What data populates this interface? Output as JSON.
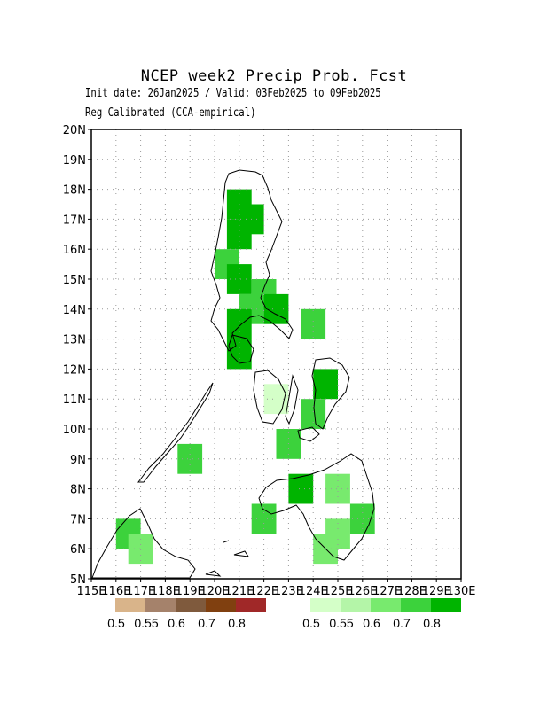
{
  "title": "NCEP week2 Precip Prob. Fcst",
  "subtitle_line1": "Init date: 26Jan2025 / Valid: 03Feb2025 to 09Feb2025",
  "subtitle_line2": "Reg Calibrated (CCA-empirical)",
  "map": {
    "lon_range": [
      115,
      130
    ],
    "lat_range": [
      5,
      20
    ],
    "grid": true,
    "lon_labels": [
      "115E",
      "116E",
      "117E",
      "118E",
      "119E",
      "120E",
      "121E",
      "122E",
      "123E",
      "124E",
      "125E",
      "126E",
      "127E",
      "128E",
      "129E",
      "130E"
    ],
    "lat_labels": [
      "5N",
      "6N",
      "7N",
      "8N",
      "9N",
      "10N",
      "11N",
      "12N",
      "13N",
      "14N",
      "15N",
      "16N",
      "17N",
      "18N",
      "19N",
      "20N"
    ],
    "cell_size_deg": 1,
    "cells": [
      {
        "lon": 120.5,
        "lat": 15.5,
        "p": 0.7
      },
      {
        "lon": 121.0,
        "lat": 17.5,
        "p": 0.8
      },
      {
        "lon": 121.0,
        "lat": 16.5,
        "p": 0.8
      },
      {
        "lon": 121.5,
        "lat": 17.0,
        "p": 0.8
      },
      {
        "lon": 121.0,
        "lat": 15.0,
        "p": 0.8
      },
      {
        "lon": 121.5,
        "lat": 14.0,
        "p": 0.7
      },
      {
        "lon": 121.0,
        "lat": 13.5,
        "p": 0.8
      },
      {
        "lon": 121.0,
        "lat": 12.5,
        "p": 0.8
      },
      {
        "lon": 122.0,
        "lat": 14.5,
        "p": 0.7
      },
      {
        "lon": 122.5,
        "lat": 14.0,
        "p": 0.8
      },
      {
        "lon": 124.0,
        "lat": 13.5,
        "p": 0.7
      },
      {
        "lon": 124.5,
        "lat": 11.5,
        "p": 0.8
      },
      {
        "lon": 124.0,
        "lat": 10.5,
        "p": 0.7
      },
      {
        "lon": 122.5,
        "lat": 11.0,
        "p": 0.5
      },
      {
        "lon": 123.0,
        "lat": 9.5,
        "p": 0.7
      },
      {
        "lon": 123.5,
        "lat": 8.0,
        "p": 0.8
      },
      {
        "lon": 125.0,
        "lat": 8.0,
        "p": 0.6
      },
      {
        "lon": 125.0,
        "lat": 6.5,
        "p": 0.6
      },
      {
        "lon": 124.5,
        "lat": 6.0,
        "p": 0.6
      },
      {
        "lon": 126.0,
        "lat": 7.0,
        "p": 0.7
      },
      {
        "lon": 122.0,
        "lat": 7.0,
        "p": 0.7
      },
      {
        "lon": 119.0,
        "lat": 9.0,
        "p": 0.7
      },
      {
        "lon": 116.5,
        "lat": 6.5,
        "p": 0.7
      },
      {
        "lon": 117.0,
        "lat": 6.0,
        "p": 0.6
      }
    ]
  },
  "legend_dry": {
    "colors": [
      "#d9b48a",
      "#a5826b",
      "#7f5a3d",
      "#804010",
      "#a02828"
    ],
    "labels": [
      "0.5",
      "0.55",
      "0.6",
      "0.7",
      "0.8"
    ]
  },
  "legend_wet": {
    "colors": [
      "#d4ffc8",
      "#b4f5a8",
      "#78ea6e",
      "#3cd23c",
      "#00b400"
    ],
    "labels": [
      "0.5",
      "0.55",
      "0.6",
      "0.7",
      "0.8"
    ]
  }
}
